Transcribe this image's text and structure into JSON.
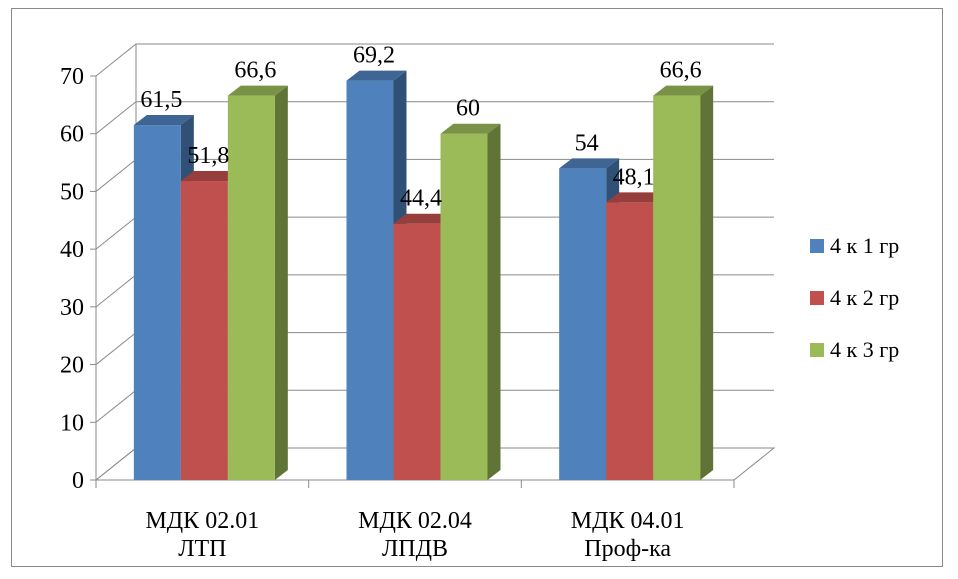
{
  "chart_data": {
    "type": "bar",
    "categories": [
      [
        "МДК 02.01",
        "ЛТП"
      ],
      [
        "МДК 02.04",
        "ЛПДВ"
      ],
      [
        "МДК 04.01",
        "Проф-ка"
      ]
    ],
    "series": [
      {
        "name": "4 к 1 гр",
        "color": "#4F81BD",
        "values": [
          61.5,
          69.2,
          54
        ]
      },
      {
        "name": "4 к 2 гр",
        "color": "#C0504D",
        "values": [
          51.8,
          44.4,
          48.1
        ]
      },
      {
        "name": "4 к 3 гр",
        "color": "#9BBB59",
        "values": [
          66.6,
          60,
          66.6
        ]
      }
    ],
    "data_labels": [
      [
        "61,5",
        "69,2",
        "54"
      ],
      [
        "51,8",
        "44,4",
        "48,1"
      ],
      [
        "66,6",
        "60",
        "66,6"
      ]
    ],
    "ylim": [
      0,
      70
    ],
    "yticks": [
      "0",
      "10",
      "20",
      "30",
      "40",
      "50",
      "60",
      "70"
    ],
    "grid": true,
    "legend_position": "right",
    "style": "3d-clustered-column"
  }
}
